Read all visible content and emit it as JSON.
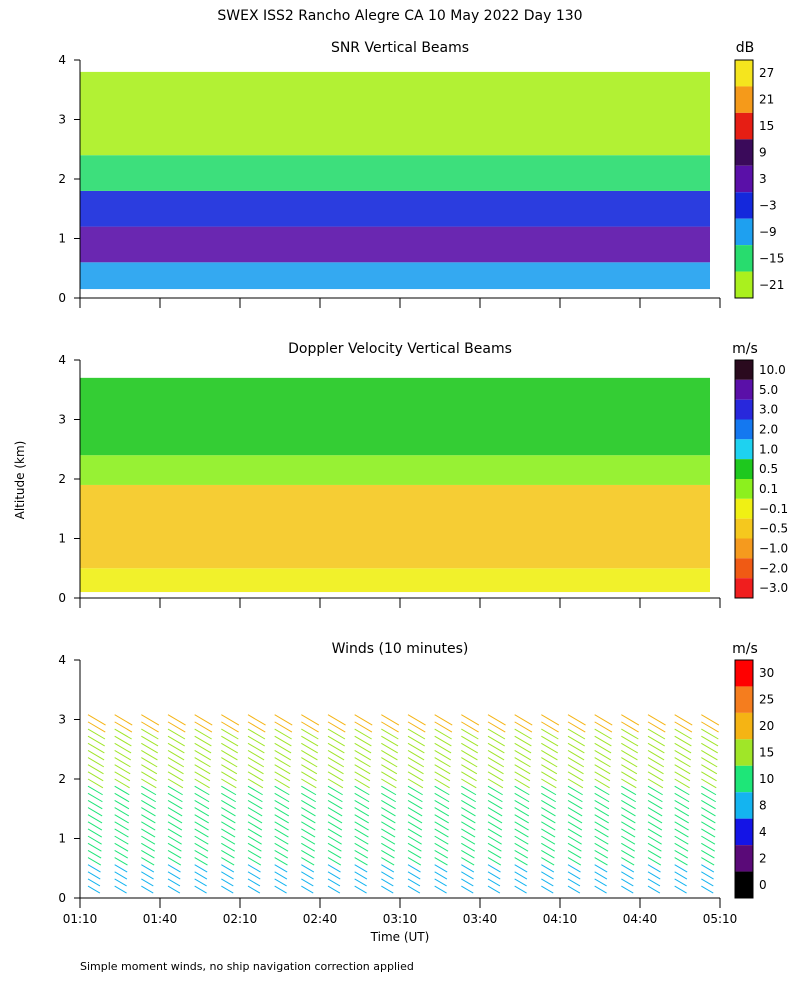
{
  "title": "SWEX ISS2 Rancho Alegre CA  10 May 2022 Day 130",
  "footnote": "Simple moment winds, no ship navigation correction applied",
  "shared_axes": {
    "xlabel": "Time (UT)",
    "ylabel": "Altitude (km)",
    "x_ticks": [
      "01:10",
      "01:40",
      "02:10",
      "02:40",
      "03:10",
      "03:40",
      "04:10",
      "04:40",
      "05:10"
    ],
    "y_ticks": [
      "0",
      "1",
      "2",
      "3",
      "4"
    ]
  },
  "chart_data": [
    {
      "type": "heatmap",
      "title": "SNR Vertical Beams",
      "colorbar_unit": "dB",
      "colorbar_labels": [
        "27",
        "21",
        "15",
        "9",
        "3",
        "−3",
        "−9",
        "−15",
        "−21"
      ],
      "colorbar_colors": [
        "#f5e51e",
        "#f59a1a",
        "#e61e14",
        "#3a0a5a",
        "#5a10a8",
        "#1428dc",
        "#1ea0f0",
        "#28dc6e",
        "#aaf01e"
      ],
      "x_range": [
        "01:10",
        "05:10"
      ],
      "ylim": [
        0,
        4
      ],
      "layers": [
        {
          "alt_km": [
            0.15,
            0.6
          ],
          "level": "−9"
        },
        {
          "alt_km": [
            0.6,
            1.2
          ],
          "level": "3"
        },
        {
          "alt_km": [
            1.2,
            1.8
          ],
          "level": "−3"
        },
        {
          "alt_km": [
            1.8,
            2.4
          ],
          "level": "−15"
        },
        {
          "alt_km": [
            2.4,
            3.8
          ],
          "level": "−21"
        }
      ]
    },
    {
      "type": "heatmap",
      "title": "Doppler Velocity Vertical Beams",
      "colorbar_unit": "m/s",
      "colorbar_labels": [
        "10.0",
        "5.0",
        "3.0",
        "2.0",
        "1.0",
        "0.5",
        "0.1",
        "−0.1",
        "−0.5",
        "−1.0",
        "−2.0",
        "−3.0"
      ],
      "colorbar_colors": [
        "#2a0a1e",
        "#5a10a8",
        "#2828dc",
        "#1478f0",
        "#1ed2f0",
        "#1ec81e",
        "#8cf01e",
        "#f0f014",
        "#f5c81e",
        "#f59a1e",
        "#f05a14",
        "#f01e1e"
      ],
      "x_range": [
        "01:10",
        "05:10"
      ],
      "ylim": [
        0,
        4
      ],
      "layers": [
        {
          "alt_km": [
            0.1,
            0.5
          ],
          "level": "−0.1"
        },
        {
          "alt_km": [
            0.5,
            1.9
          ],
          "level": "−0.5"
        },
        {
          "alt_km": [
            1.9,
            2.4
          ],
          "level": "0.1"
        },
        {
          "alt_km": [
            2.4,
            3.7
          ],
          "level": "0.5"
        }
      ]
    },
    {
      "type": "scatter",
      "title": "Winds (10 minutes)",
      "colorbar_unit": "m/s",
      "colorbar_labels": [
        "30",
        "25",
        "20",
        "15",
        "10",
        "8",
        "4",
        "2",
        "0"
      ],
      "colorbar_colors": [
        "#ff0000",
        "#f57d1e",
        "#f5b414",
        "#a0e628",
        "#1ee678",
        "#14b4f0",
        "#1414e6",
        "#5a0a78",
        "#000000"
      ],
      "x_range": [
        "01:10",
        "05:10"
      ],
      "ylim": [
        0,
        4
      ],
      "profile_times": [
        "01:10",
        "01:20",
        "01:30",
        "01:40",
        "01:50",
        "02:00",
        "02:10",
        "02:20",
        "02:30",
        "02:40",
        "02:50",
        "03:00",
        "03:10",
        "03:20",
        "03:30",
        "03:40",
        "03:50",
        "04:00",
        "04:10",
        "04:20",
        "04:30",
        "04:40",
        "04:50",
        "05:00"
      ],
      "speed_profile_mps": [
        {
          "alt_km": 0.3,
          "speed": 8
        },
        {
          "alt_km": 1.0,
          "speed": 12
        },
        {
          "alt_km": 1.8,
          "speed": 14
        },
        {
          "alt_km": 2.5,
          "speed": 18
        },
        {
          "alt_km": 3.2,
          "speed": 22
        }
      ]
    }
  ]
}
